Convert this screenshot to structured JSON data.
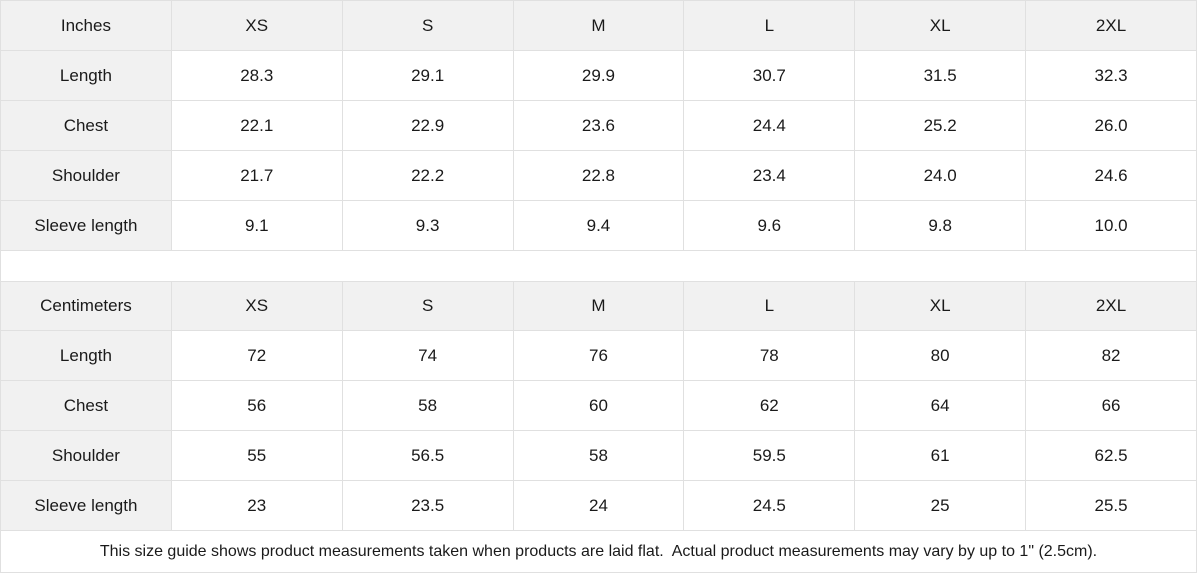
{
  "size_guide": {
    "inches": {
      "unit_label": "Inches",
      "columns": [
        "XS",
        "S",
        "M",
        "L",
        "XL",
        "2XL"
      ],
      "rows": [
        {
          "label": "Length",
          "values": [
            "28.3",
            "29.1",
            "29.9",
            "30.7",
            "31.5",
            "32.3"
          ]
        },
        {
          "label": "Chest",
          "values": [
            "22.1",
            "22.9",
            "23.6",
            "24.4",
            "25.2",
            "26.0"
          ]
        },
        {
          "label": "Shoulder",
          "values": [
            "21.7",
            "22.2",
            "22.8",
            "23.4",
            "24.0",
            "24.6"
          ]
        },
        {
          "label": "Sleeve length",
          "values": [
            "9.1",
            "9.3",
            "9.4",
            "9.6",
            "9.8",
            "10.0"
          ]
        }
      ]
    },
    "centimeters": {
      "unit_label": "Centimeters",
      "columns": [
        "XS",
        "S",
        "M",
        "L",
        "XL",
        "2XL"
      ],
      "rows": [
        {
          "label": "Length",
          "values": [
            "72",
            "74",
            "76",
            "78",
            "80",
            "82"
          ]
        },
        {
          "label": "Chest",
          "values": [
            "56",
            "58",
            "60",
            "62",
            "64",
            "66"
          ]
        },
        {
          "label": "Shoulder",
          "values": [
            "55",
            "56.5",
            "58",
            "59.5",
            "61",
            "62.5"
          ]
        },
        {
          "label": "Sleeve length",
          "values": [
            "23",
            "23.5",
            "24",
            "24.5",
            "25",
            "25.5"
          ]
        }
      ]
    }
  },
  "footer": {
    "note": "This size guide shows product measurements taken when products are laid flat.  Actual product measurements may vary by up to 1\" (2.5cm)."
  },
  "colors": {
    "header_bg": "#f1f1f1",
    "border": "#e0e0e0",
    "text": "#1a1a1a"
  },
  "chart_data": [
    {
      "type": "table",
      "title": "Inches",
      "columns": [
        "XS",
        "S",
        "M",
        "L",
        "XL",
        "2XL"
      ],
      "row_labels": [
        "Length",
        "Chest",
        "Shoulder",
        "Sleeve length"
      ],
      "rows": [
        [
          28.3,
          29.1,
          29.9,
          30.7,
          31.5,
          32.3
        ],
        [
          22.1,
          22.9,
          23.6,
          24.4,
          25.2,
          26.0
        ],
        [
          21.7,
          22.2,
          22.8,
          23.4,
          24.0,
          24.6
        ],
        [
          9.1,
          9.3,
          9.4,
          9.6,
          9.8,
          10.0
        ]
      ]
    },
    {
      "type": "table",
      "title": "Centimeters",
      "columns": [
        "XS",
        "S",
        "M",
        "L",
        "XL",
        "2XL"
      ],
      "row_labels": [
        "Length",
        "Chest",
        "Shoulder",
        "Sleeve length"
      ],
      "rows": [
        [
          72,
          74,
          76,
          78,
          80,
          82
        ],
        [
          56,
          58,
          60,
          62,
          64,
          66
        ],
        [
          55,
          56.5,
          58,
          59.5,
          61,
          62.5
        ],
        [
          23,
          23.5,
          24,
          24.5,
          25,
          25.5
        ]
      ]
    }
  ]
}
